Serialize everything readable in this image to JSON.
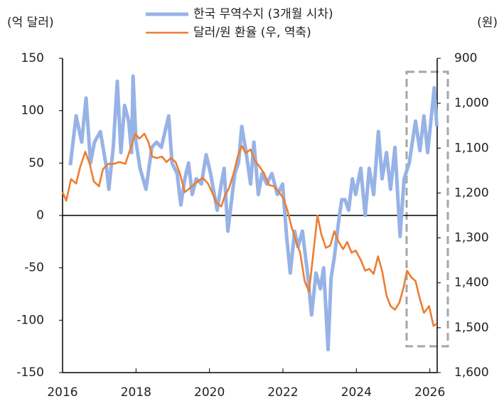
{
  "chart_data": {
    "type": "line",
    "y_label": "(억 달러)",
    "y2_label": "(원)",
    "xlim": [
      2016,
      2026.2
    ],
    "xticks": [
      2016,
      2018,
      2020,
      2022,
      2024,
      2026
    ],
    "ylim": [
      -150,
      150
    ],
    "yticks": [
      -150,
      -100,
      -50,
      0,
      50,
      100,
      150
    ],
    "y2lim": [
      900,
      1600
    ],
    "y2_reversed": true,
    "y2ticks": [
      900,
      {
        "value": 1000,
        "label": "1,000"
      },
      {
        "value": 1100,
        "label": "1,100"
      },
      {
        "value": 1200,
        "label": "1,200"
      },
      {
        "value": 1300,
        "label": "1,300"
      },
      {
        "value": 1400,
        "label": "1,400"
      },
      {
        "value": 1500,
        "label": "1,500"
      },
      {
        "value": 1600,
        "label": "1,600"
      }
    ],
    "series": [
      {
        "name": "한국 무역수지 (3개월 시차)",
        "color": "#97b3e6",
        "axis": "y",
        "x": [
          2016.21,
          2016.37,
          2016.52,
          2016.64,
          2016.76,
          2016.87,
          2017.03,
          2017.2,
          2017.26,
          2017.38,
          2017.49,
          2017.59,
          2017.69,
          2017.8,
          2017.88,
          2017.92,
          2018.0,
          2018.11,
          2018.27,
          2018.43,
          2018.56,
          2018.69,
          2018.89,
          2018.98,
          2019.12,
          2019.22,
          2019.33,
          2019.43,
          2019.53,
          2019.64,
          2019.78,
          2019.91,
          2020.03,
          2020.21,
          2020.32,
          2020.4,
          2020.5,
          2020.69,
          2020.79,
          2020.88,
          2021.0,
          2021.12,
          2021.21,
          2021.33,
          2021.43,
          2021.56,
          2021.7,
          2021.85,
          2021.99,
          2022.1,
          2022.2,
          2022.32,
          2022.41,
          2022.53,
          2022.67,
          2022.78,
          2022.9,
          2023.02,
          2023.11,
          2023.23,
          2023.31,
          2023.4,
          2023.52,
          2023.6,
          2023.69,
          2023.79,
          2023.89,
          2023.98,
          2024.12,
          2024.24,
          2024.35,
          2024.47,
          2024.6,
          2024.7,
          2024.82,
          2024.93,
          2025.05,
          2025.19,
          2025.3,
          2025.44,
          2025.61,
          2025.73,
          2025.84,
          2025.94,
          2026.12,
          2026.19
        ],
        "values": [
          48,
          95,
          70,
          112,
          50,
          70,
          80,
          45,
          25,
          65,
          128,
          60,
          105,
          90,
          60,
          133,
          70,
          45,
          25,
          65,
          70,
          65,
          95,
          50,
          40,
          10,
          35,
          50,
          20,
          35,
          30,
          58,
          40,
          5,
          30,
          45,
          -15,
          40,
          50,
          85,
          60,
          30,
          70,
          20,
          40,
          30,
          40,
          20,
          30,
          -20,
          -55,
          -15,
          -30,
          -15,
          -55,
          -95,
          -55,
          -70,
          -50,
          -128,
          -60,
          -40,
          -5,
          15,
          15,
          5,
          35,
          20,
          45,
          0,
          45,
          20,
          80,
          35,
          60,
          25,
          65,
          -20,
          35,
          50,
          90,
          62,
          95,
          60,
          122,
          85
        ]
      },
      {
        "name": "달러/원 환율 (우, 역축)",
        "color": "#ed7d31",
        "axis": "y2",
        "x": [
          2016.0,
          2016.1,
          2016.23,
          2016.37,
          2016.48,
          2016.62,
          2016.74,
          2016.85,
          2016.99,
          2017.1,
          2017.24,
          2017.4,
          2017.55,
          2017.71,
          2017.84,
          2017.98,
          2018.09,
          2018.23,
          2018.34,
          2018.44,
          2018.56,
          2018.71,
          2018.83,
          2018.95,
          2019.08,
          2019.2,
          2019.33,
          2019.45,
          2019.57,
          2019.68,
          2019.82,
          2019.96,
          2020.07,
          2020.19,
          2020.32,
          2020.42,
          2020.53,
          2020.65,
          2020.77,
          2020.88,
          2020.98,
          2021.12,
          2021.23,
          2021.37,
          2021.48,
          2021.62,
          2021.76,
          2021.89,
          2022.01,
          2022.12,
          2022.24,
          2022.36,
          2022.47,
          2022.59,
          2022.71,
          2022.84,
          2022.94,
          2023.05,
          2023.17,
          2023.29,
          2023.4,
          2023.52,
          2023.64,
          2023.75,
          2023.87,
          2023.98,
          2024.12,
          2024.24,
          2024.35,
          2024.47,
          2024.59,
          2024.7,
          2024.82,
          2024.93,
          2025.05,
          2025.17,
          2025.28,
          2025.38,
          2025.5,
          2025.61,
          2025.73,
          2025.84,
          2025.98,
          2026.1,
          2026.19
        ],
        "values": [
          1198,
          1217,
          1169,
          1179,
          1142,
          1108,
          1135,
          1174,
          1185,
          1147,
          1135,
          1135,
          1131,
          1135,
          1103,
          1068,
          1079,
          1068,
          1087,
          1119,
          1122,
          1119,
          1131,
          1122,
          1131,
          1158,
          1198,
          1190,
          1182,
          1174,
          1166,
          1179,
          1198,
          1222,
          1230,
          1206,
          1190,
          1158,
          1119,
          1095,
          1111,
          1103,
          1127,
          1142,
          1155,
          1182,
          1185,
          1198,
          1211,
          1238,
          1277,
          1309,
          1333,
          1396,
          1420,
          1325,
          1250,
          1293,
          1322,
          1317,
          1285,
          1309,
          1325,
          1309,
          1333,
          1328,
          1349,
          1373,
          1369,
          1380,
          1341,
          1373,
          1428,
          1452,
          1460,
          1444,
          1412,
          1373,
          1388,
          1396,
          1436,
          1467,
          1452,
          1496,
          1491
        ]
      }
    ]
  }
}
